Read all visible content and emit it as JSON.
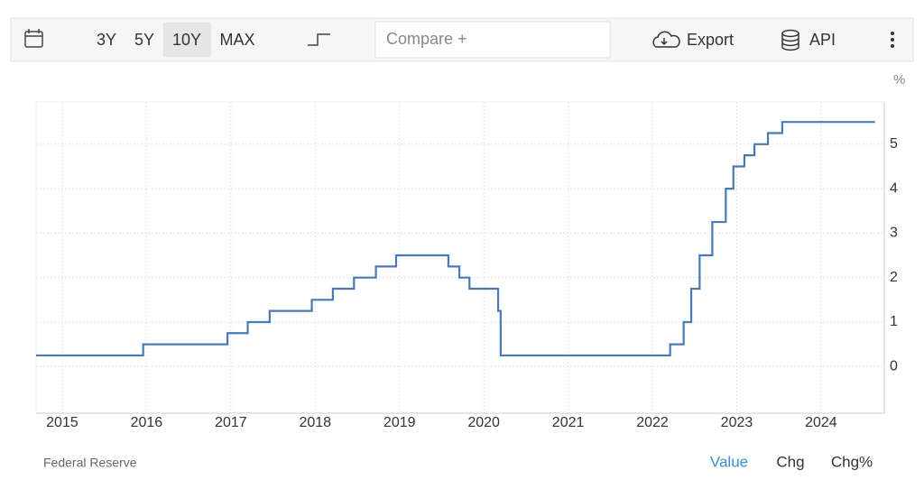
{
  "toolbar": {
    "ranges": [
      "3Y",
      "5Y",
      "10Y",
      "MAX"
    ],
    "compare": "Compare +",
    "export": "Export",
    "api": "API"
  },
  "footer": {
    "source": "Federal Reserve",
    "modes": [
      "Value",
      "Chg",
      "Chg%"
    ]
  },
  "chart_data": {
    "type": "line",
    "line_shape": "step",
    "y_unit": "%",
    "x": [
      2014.69,
      2015.96,
      2016.96,
      2017.2,
      2017.46,
      2017.96,
      2018.21,
      2018.46,
      2018.72,
      2018.96,
      2019.58,
      2019.71,
      2019.83,
      2020.17,
      2020.2,
      2022.21,
      2022.37,
      2022.46,
      2022.56,
      2022.71,
      2022.87,
      2022.96,
      2023.09,
      2023.21,
      2023.37,
      2023.54,
      2024.64
    ],
    "series": [
      {
        "color": "#4a7ab5",
        "values": [
          0.25,
          0.5,
          0.75,
          1.0,
          1.25,
          1.5,
          1.75,
          2.0,
          2.25,
          2.5,
          2.25,
          2.0,
          1.75,
          1.25,
          0.25,
          0.5,
          1.0,
          1.75,
          2.5,
          3.25,
          4.0,
          4.5,
          4.75,
          5.0,
          5.25,
          5.5,
          5.5
        ]
      }
    ],
    "xlim": [
      2014.69,
      2024.75
    ],
    "xticks": [
      2015,
      2016,
      2017,
      2018,
      2019,
      2020,
      2021,
      2022,
      2023,
      2024
    ],
    "ylim": [
      -1.05,
      5.95
    ],
    "yticks": [
      0,
      1,
      2,
      3,
      4,
      5
    ],
    "grid": true
  }
}
